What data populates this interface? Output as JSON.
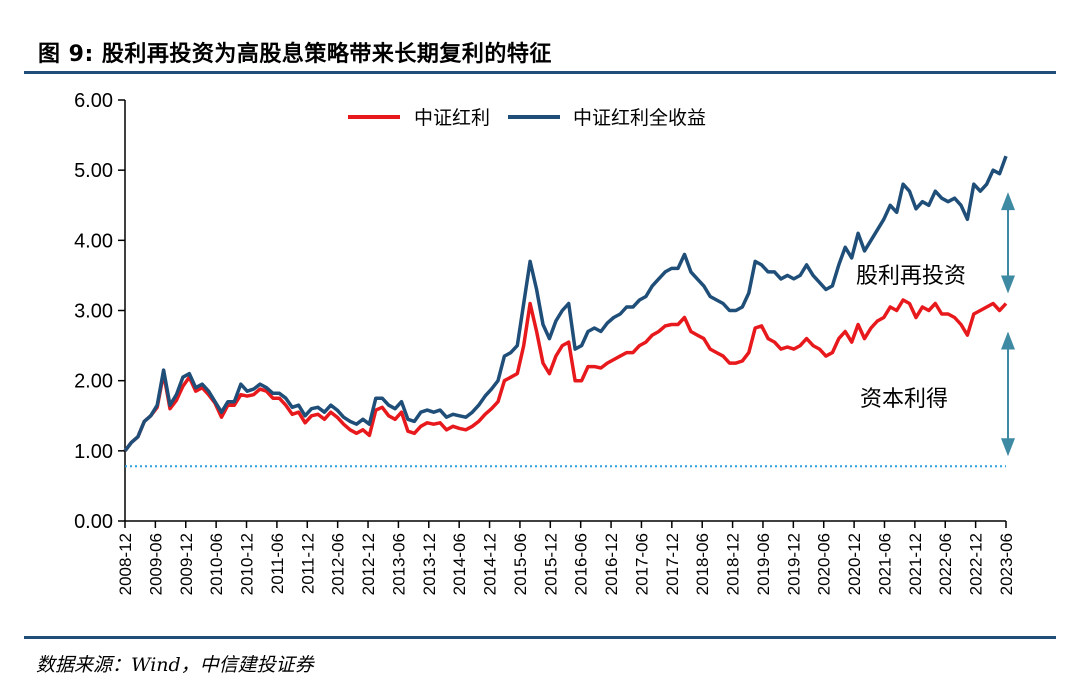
{
  "header": {
    "title": "图 9: 股利再投资为高股息策略带来长期复利的特征"
  },
  "footer": {
    "source": "数据来源：Wind，中信建投证券"
  },
  "chart_data": {
    "type": "line",
    "ylim": [
      0,
      6
    ],
    "yticks": [
      "0.00",
      "1.00",
      "2.00",
      "3.00",
      "4.00",
      "5.00",
      "6.00"
    ],
    "x_tick_labels": [
      "2008-12",
      "2009-06",
      "2009-12",
      "2010-06",
      "2010-12",
      "2011-06",
      "2011-12",
      "2012-06",
      "2012-12",
      "2013-06",
      "2013-12",
      "2014-06",
      "2014-12",
      "2015-06",
      "2015-12",
      "2016-06",
      "2016-12",
      "2017-06",
      "2017-12",
      "2018-06",
      "2018-12",
      "2019-06",
      "2019-12",
      "2020-06",
      "2020-12",
      "2021-06",
      "2021-12",
      "2022-06",
      "2022-12",
      "2023-06"
    ],
    "legend_position": "top",
    "reference_line": {
      "y": 0.78,
      "color": "#2f9fe0",
      "style": "dotted"
    },
    "series": [
      {
        "name": "中证红利",
        "color": "#e8191c",
        "values": [
          1.0,
          1.12,
          1.2,
          1.42,
          1.5,
          1.62,
          2.1,
          1.6,
          1.72,
          1.92,
          2.05,
          1.85,
          1.9,
          1.8,
          1.68,
          1.48,
          1.65,
          1.65,
          1.8,
          1.78,
          1.8,
          1.88,
          1.85,
          1.75,
          1.75,
          1.65,
          1.52,
          1.55,
          1.4,
          1.5,
          1.52,
          1.45,
          1.55,
          1.48,
          1.38,
          1.3,
          1.25,
          1.3,
          1.22,
          1.58,
          1.62,
          1.5,
          1.45,
          1.55,
          1.28,
          1.25,
          1.35,
          1.4,
          1.38,
          1.4,
          1.3,
          1.35,
          1.32,
          1.3,
          1.35,
          1.42,
          1.52,
          1.6,
          1.7,
          2.0,
          2.05,
          2.1,
          2.5,
          3.1,
          2.7,
          2.25,
          2.1,
          2.35,
          2.5,
          2.55,
          2.0,
          2.0,
          2.2,
          2.2,
          2.18,
          2.25,
          2.3,
          2.35,
          2.4,
          2.4,
          2.5,
          2.55,
          2.65,
          2.7,
          2.78,
          2.8,
          2.8,
          2.9,
          2.7,
          2.65,
          2.6,
          2.45,
          2.4,
          2.35,
          2.25,
          2.25,
          2.28,
          2.4,
          2.75,
          2.78,
          2.6,
          2.55,
          2.45,
          2.48,
          2.45,
          2.5,
          2.6,
          2.5,
          2.45,
          2.35,
          2.4,
          2.6,
          2.7,
          2.55,
          2.8,
          2.6,
          2.75,
          2.85,
          2.9,
          3.05,
          3.0,
          3.15,
          3.1,
          2.9,
          3.05,
          3.0,
          3.1,
          2.95,
          2.95,
          2.9,
          2.8,
          2.65,
          2.95,
          3.0,
          3.05,
          3.1,
          3.0,
          3.1
        ]
      },
      {
        "name": "中证红利全收益",
        "color": "#1f4e79",
        "values": [
          1.0,
          1.12,
          1.2,
          1.42,
          1.5,
          1.65,
          2.15,
          1.65,
          1.8,
          2.05,
          2.1,
          1.9,
          1.95,
          1.85,
          1.7,
          1.55,
          1.7,
          1.7,
          1.95,
          1.85,
          1.88,
          1.95,
          1.9,
          1.82,
          1.82,
          1.75,
          1.62,
          1.65,
          1.5,
          1.6,
          1.62,
          1.55,
          1.65,
          1.58,
          1.48,
          1.42,
          1.38,
          1.45,
          1.38,
          1.75,
          1.75,
          1.65,
          1.6,
          1.7,
          1.45,
          1.42,
          1.55,
          1.58,
          1.55,
          1.58,
          1.48,
          1.52,
          1.5,
          1.48,
          1.55,
          1.65,
          1.78,
          1.88,
          2.0,
          2.35,
          2.4,
          2.5,
          3.1,
          3.7,
          3.3,
          2.8,
          2.6,
          2.85,
          3.0,
          3.1,
          2.45,
          2.5,
          2.7,
          2.75,
          2.7,
          2.82,
          2.9,
          2.95,
          3.05,
          3.05,
          3.15,
          3.2,
          3.35,
          3.45,
          3.55,
          3.6,
          3.6,
          3.8,
          3.55,
          3.45,
          3.35,
          3.2,
          3.15,
          3.1,
          3.0,
          3.0,
          3.05,
          3.25,
          3.7,
          3.65,
          3.55,
          3.55,
          3.45,
          3.5,
          3.45,
          3.5,
          3.65,
          3.5,
          3.4,
          3.3,
          3.35,
          3.65,
          3.9,
          3.75,
          4.1,
          3.85,
          4.0,
          4.15,
          4.3,
          4.5,
          4.4,
          4.8,
          4.7,
          4.45,
          4.55,
          4.5,
          4.7,
          4.6,
          4.55,
          4.6,
          4.5,
          4.3,
          4.8,
          4.7,
          4.8,
          5.0,
          4.95,
          5.2
        ]
      }
    ],
    "annotations": [
      {
        "label": "股利再投资"
      },
      {
        "label": "资本利得"
      }
    ]
  }
}
